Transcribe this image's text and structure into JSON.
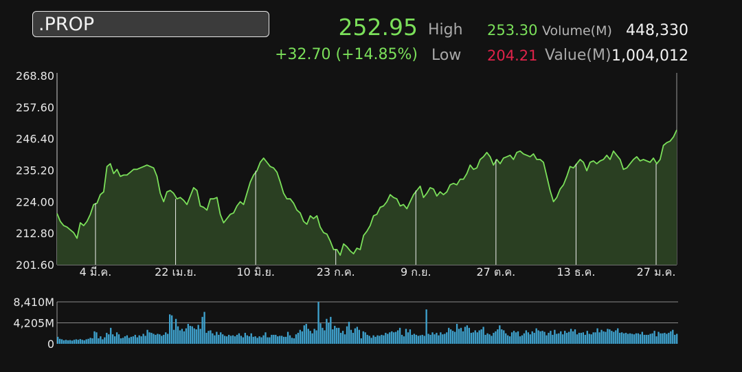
{
  "symbol": ".PROP",
  "quote": {
    "last": "252.95",
    "change": "+32.70 (+14.85%)",
    "high_label": "High",
    "high_value": "253.30",
    "low_label": "Low",
    "low_value": "204.21",
    "volume_label": "Volume(M)",
    "volume_value": "448,330",
    "value_label": "Value(M)",
    "value_value": "1,004,012"
  },
  "colors": {
    "up": "#7be05a",
    "down": "#e0234a",
    "price_line": "#7be05a",
    "price_fill": "#2a3f22",
    "volume_bar": "#3fa3cf",
    "background": "#121212"
  },
  "chart_data": [
    {
      "type": "area",
      "ylim": [
        201.6,
        268.8
      ],
      "y_ticks": [
        "268.80",
        "257.60",
        "246.40",
        "235.20",
        "224.00",
        "212.80",
        "201.60"
      ],
      "x_ticks": [
        "4 มี.ค.",
        "22 เม.ย.",
        "10 มิ.ย.",
        "23 ก.ค.",
        "9 ก.ย.",
        "27 ต.ค.",
        "13 ธ.ค.",
        "27 ม.ค."
      ],
      "vertical_grid_at_ticks": true,
      "series": [
        {
          "values": [
            219.8,
            217.0,
            215.5,
            215.0,
            214.0,
            213.0,
            211.0,
            216.5,
            215.5,
            217.0,
            219.5,
            223.0,
            223.5,
            226.5,
            227.5,
            236.5,
            237.5,
            234.0,
            235.5,
            233.0,
            233.5,
            233.5,
            234.5,
            235.5,
            235.5,
            236.0,
            236.5,
            237.0,
            236.5,
            236.0,
            233.0,
            227.0,
            224.0,
            227.5,
            228.0,
            227.0,
            225.0,
            225.5,
            224.5,
            223.0,
            226.0,
            229.0,
            228.0,
            222.5,
            222.0,
            221.0,
            225.0,
            225.0,
            225.5,
            219.5,
            216.5,
            218.0,
            219.5,
            220.0,
            222.5,
            224.0,
            223.0,
            227.0,
            231.0,
            233.5,
            235.0,
            238.0,
            239.5,
            238.0,
            236.5,
            236.0,
            234.5,
            231.0,
            227.0,
            225.0,
            225.0,
            223.5,
            221.0,
            220.0,
            217.0,
            216.0,
            219.0,
            218.0,
            219.0,
            215.0,
            213.0,
            212.5,
            210.0,
            207.0,
            207.0,
            205.0,
            209.0,
            208.0,
            206.5,
            205.5,
            207.5,
            207.0,
            212.0,
            213.5,
            215.5,
            219.0,
            219.5,
            222.0,
            222.5,
            224.0,
            226.5,
            225.5,
            225.0,
            222.5,
            223.0,
            221.5,
            224.0,
            226.5,
            228.0,
            229.5,
            225.5,
            227.0,
            229.0,
            228.5,
            226.0,
            227.5,
            226.5,
            227.5,
            230.0,
            230.5,
            230.0,
            232.0,
            232.0,
            234.0,
            237.0,
            235.5,
            236.0,
            239.0,
            240.0,
            241.5,
            240.0,
            237.0,
            239.0,
            237.5,
            239.5,
            240.0,
            240.5,
            239.0,
            241.5,
            242.0,
            241.0,
            240.5,
            240.0,
            241.0,
            239.0,
            239.0,
            238.0,
            233.0,
            228.0,
            224.0,
            225.5,
            228.5,
            230.0,
            233.0,
            236.5,
            236.0,
            237.5,
            239.0,
            238.0,
            235.0,
            238.0,
            238.5,
            237.5,
            238.5,
            239.0,
            240.5,
            239.0,
            242.0,
            240.5,
            239.0,
            235.5,
            236.0,
            237.5,
            239.0,
            240.0,
            238.5,
            239.0,
            238.5,
            238.0,
            239.5,
            237.5,
            239.0,
            244.0,
            245.0,
            245.5,
            247.0,
            249.5
          ]
        }
      ]
    },
    {
      "type": "bar",
      "ylim": [
        0,
        8410
      ],
      "y_ticks": [
        "8,410M",
        "4,205M",
        "0"
      ],
      "series": [
        {
          "values": [
            1400,
            1000,
            900,
            700,
            800,
            700,
            750,
            650,
            800,
            900,
            800,
            950,
            800,
            700,
            900,
            1000,
            1200,
            1100,
            2500,
            2300,
            1100,
            1500,
            900,
            1300,
            2200,
            1900,
            3200,
            1900,
            1500,
            2300,
            1900,
            1100,
            1200,
            1500,
            1700,
            1200,
            1400,
            1500,
            1800,
            1300,
            1700,
            1500,
            2000,
            1600,
            2800,
            2300,
            2200,
            2000,
            1800,
            2000,
            1900,
            1600,
            1800,
            2300,
            2000,
            5900,
            5700,
            2800,
            5000,
            3500,
            2700,
            3000,
            2500,
            3100,
            4000,
            3600,
            3500,
            3100,
            2900,
            3800,
            3000,
            5400,
            6400,
            2200,
            2600,
            2700,
            2100,
            1700,
            2400,
            1800,
            2300,
            1900,
            1600,
            1500,
            1800,
            1600,
            1700,
            1500,
            1800,
            2100,
            1600,
            1300,
            2200,
            1700,
            1500,
            2100,
            1400,
            1500,
            1200,
            1500,
            1300,
            1700,
            2300,
            1300,
            1300,
            1800,
            1800,
            1800,
            1500,
            1600,
            1600,
            1400,
            1400,
            2400,
            1700,
            1200,
            1100,
            1900,
            2200,
            2800,
            2500,
            3700,
            4000,
            3000,
            2600,
            2100,
            3000,
            2700,
            8400,
            4100,
            3200,
            2700,
            5000,
            4200,
            5400,
            2900,
            3600,
            3200,
            3200,
            2200,
            2600,
            1900,
            3500,
            4400,
            2800,
            2200,
            3100,
            3400,
            2800,
            1100,
            2500,
            2300,
            1800,
            1600,
            1200,
            1700,
            1400,
            1700,
            1600,
            1800,
            1700,
            2200,
            2000,
            2300,
            2500,
            2300,
            2400,
            2700,
            3200,
            1800,
            1500,
            3000,
            2300,
            2900,
            1800,
            2000,
            1800,
            1600,
            1700,
            1800,
            1600,
            6900,
            2000,
            1800,
            2300,
            1900,
            2200,
            1700,
            2300,
            1900,
            2000,
            2300,
            3200,
            2900,
            2600,
            2400,
            4000,
            3000,
            3200,
            2500,
            3400,
            3700,
            3200,
            2200,
            2300,
            2700,
            2300,
            2700,
            2900,
            3400,
            1800,
            2100,
            1900,
            1600,
            2200,
            2500,
            2900,
            3700,
            2900,
            2700,
            2100,
            1700,
            1500,
            2300,
            2600,
            2300,
            2500,
            1500,
            1700,
            2100,
            2700,
            2300,
            1900,
            2500,
            2200,
            3100,
            2700,
            2500,
            2600,
            2400,
            1700,
            2200,
            2600,
            1800,
            2800,
            2000,
            2100,
            2500,
            1900,
            2600,
            2200,
            2400,
            3000,
            2500,
            2900,
            1900,
            2200,
            2200,
            2300,
            1800,
            2600,
            2000,
            1900,
            2300,
            2300,
            3100,
            2300,
            2800,
            2500,
            2400,
            3000,
            2900,
            2600,
            2400,
            2700,
            3100,
            2200,
            2300,
            2100,
            2200,
            2000,
            2100,
            2000,
            1900,
            2100,
            2100,
            1900,
            2400,
            1800,
            1800,
            1800,
            2000,
            2100,
            2600,
            1500,
            2400,
            2100,
            2100,
            2200,
            2000,
            2200,
            2500,
            2800,
            1800,
            2000
          ]
        }
      ]
    }
  ]
}
